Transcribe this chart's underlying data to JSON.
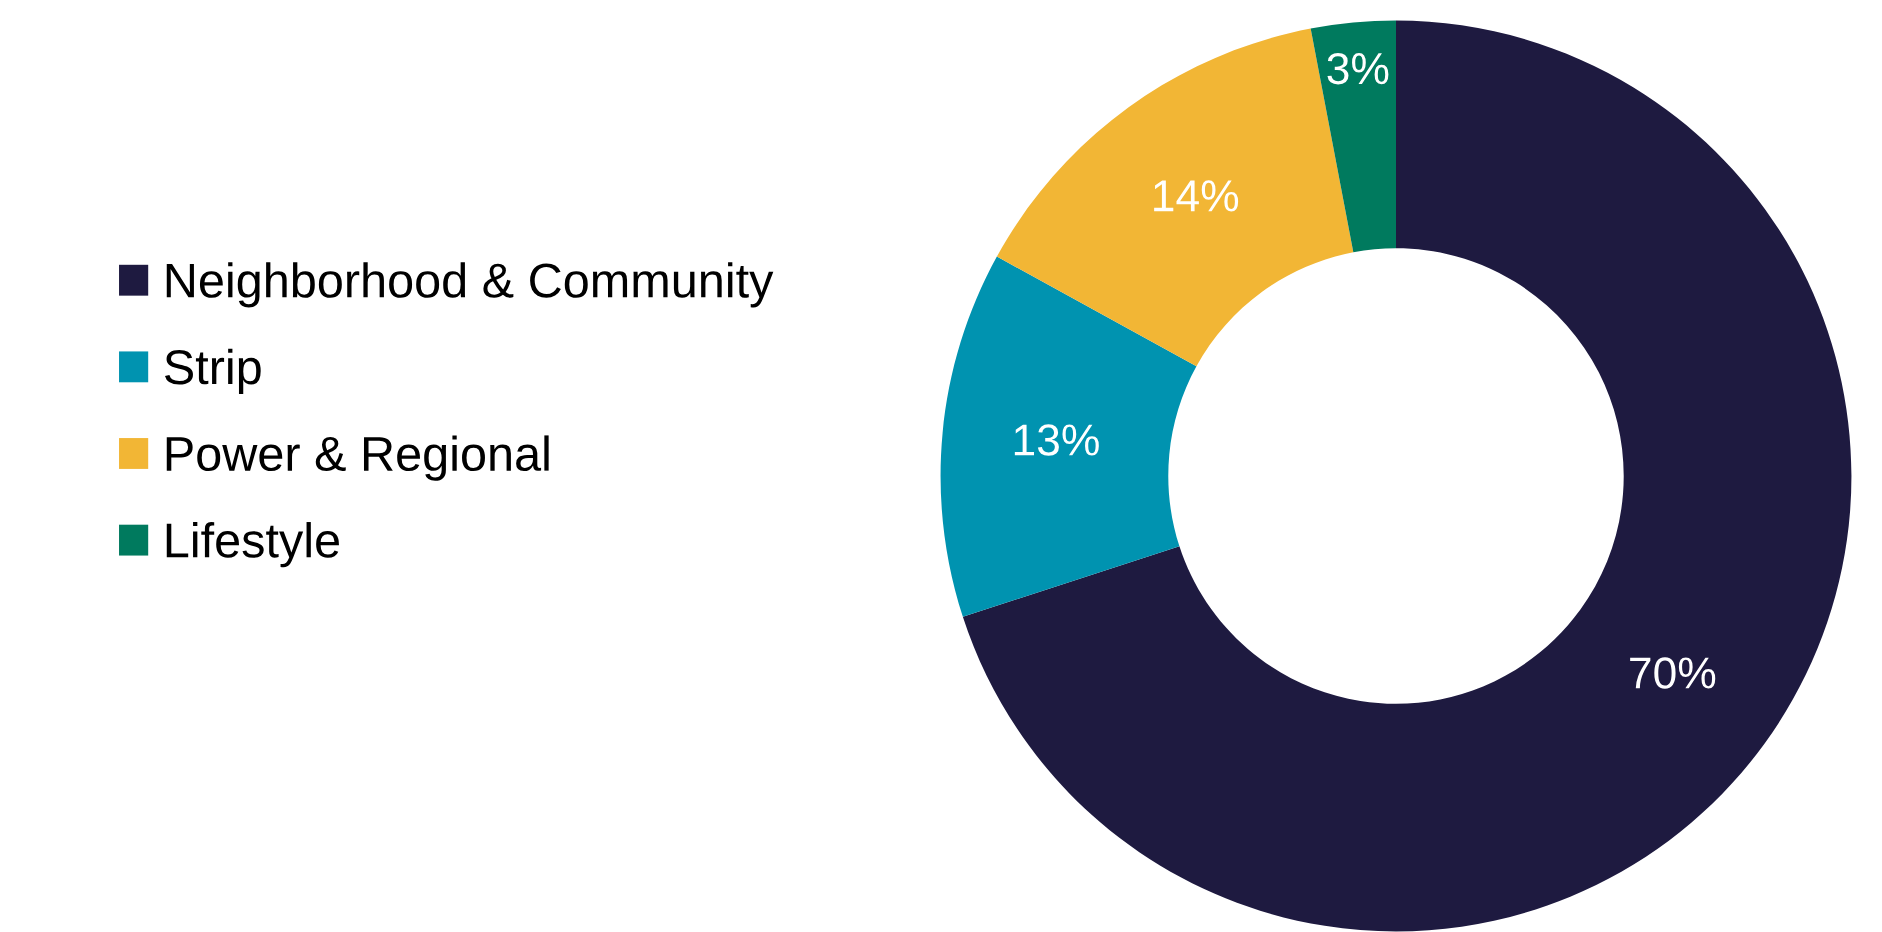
{
  "chart_data": {
    "type": "donut",
    "categories": [
      "Neighborhood & Community",
      "Strip",
      "Power & Regional",
      "Lifestyle"
    ],
    "values": [
      70,
      13,
      14,
      3
    ],
    "colors": [
      "#1e1a40",
      "#0093b0",
      "#f2b635",
      "#007a5e"
    ],
    "value_labels": [
      "70%",
      "13%",
      "14%",
      "3%"
    ],
    "legend": "left"
  }
}
